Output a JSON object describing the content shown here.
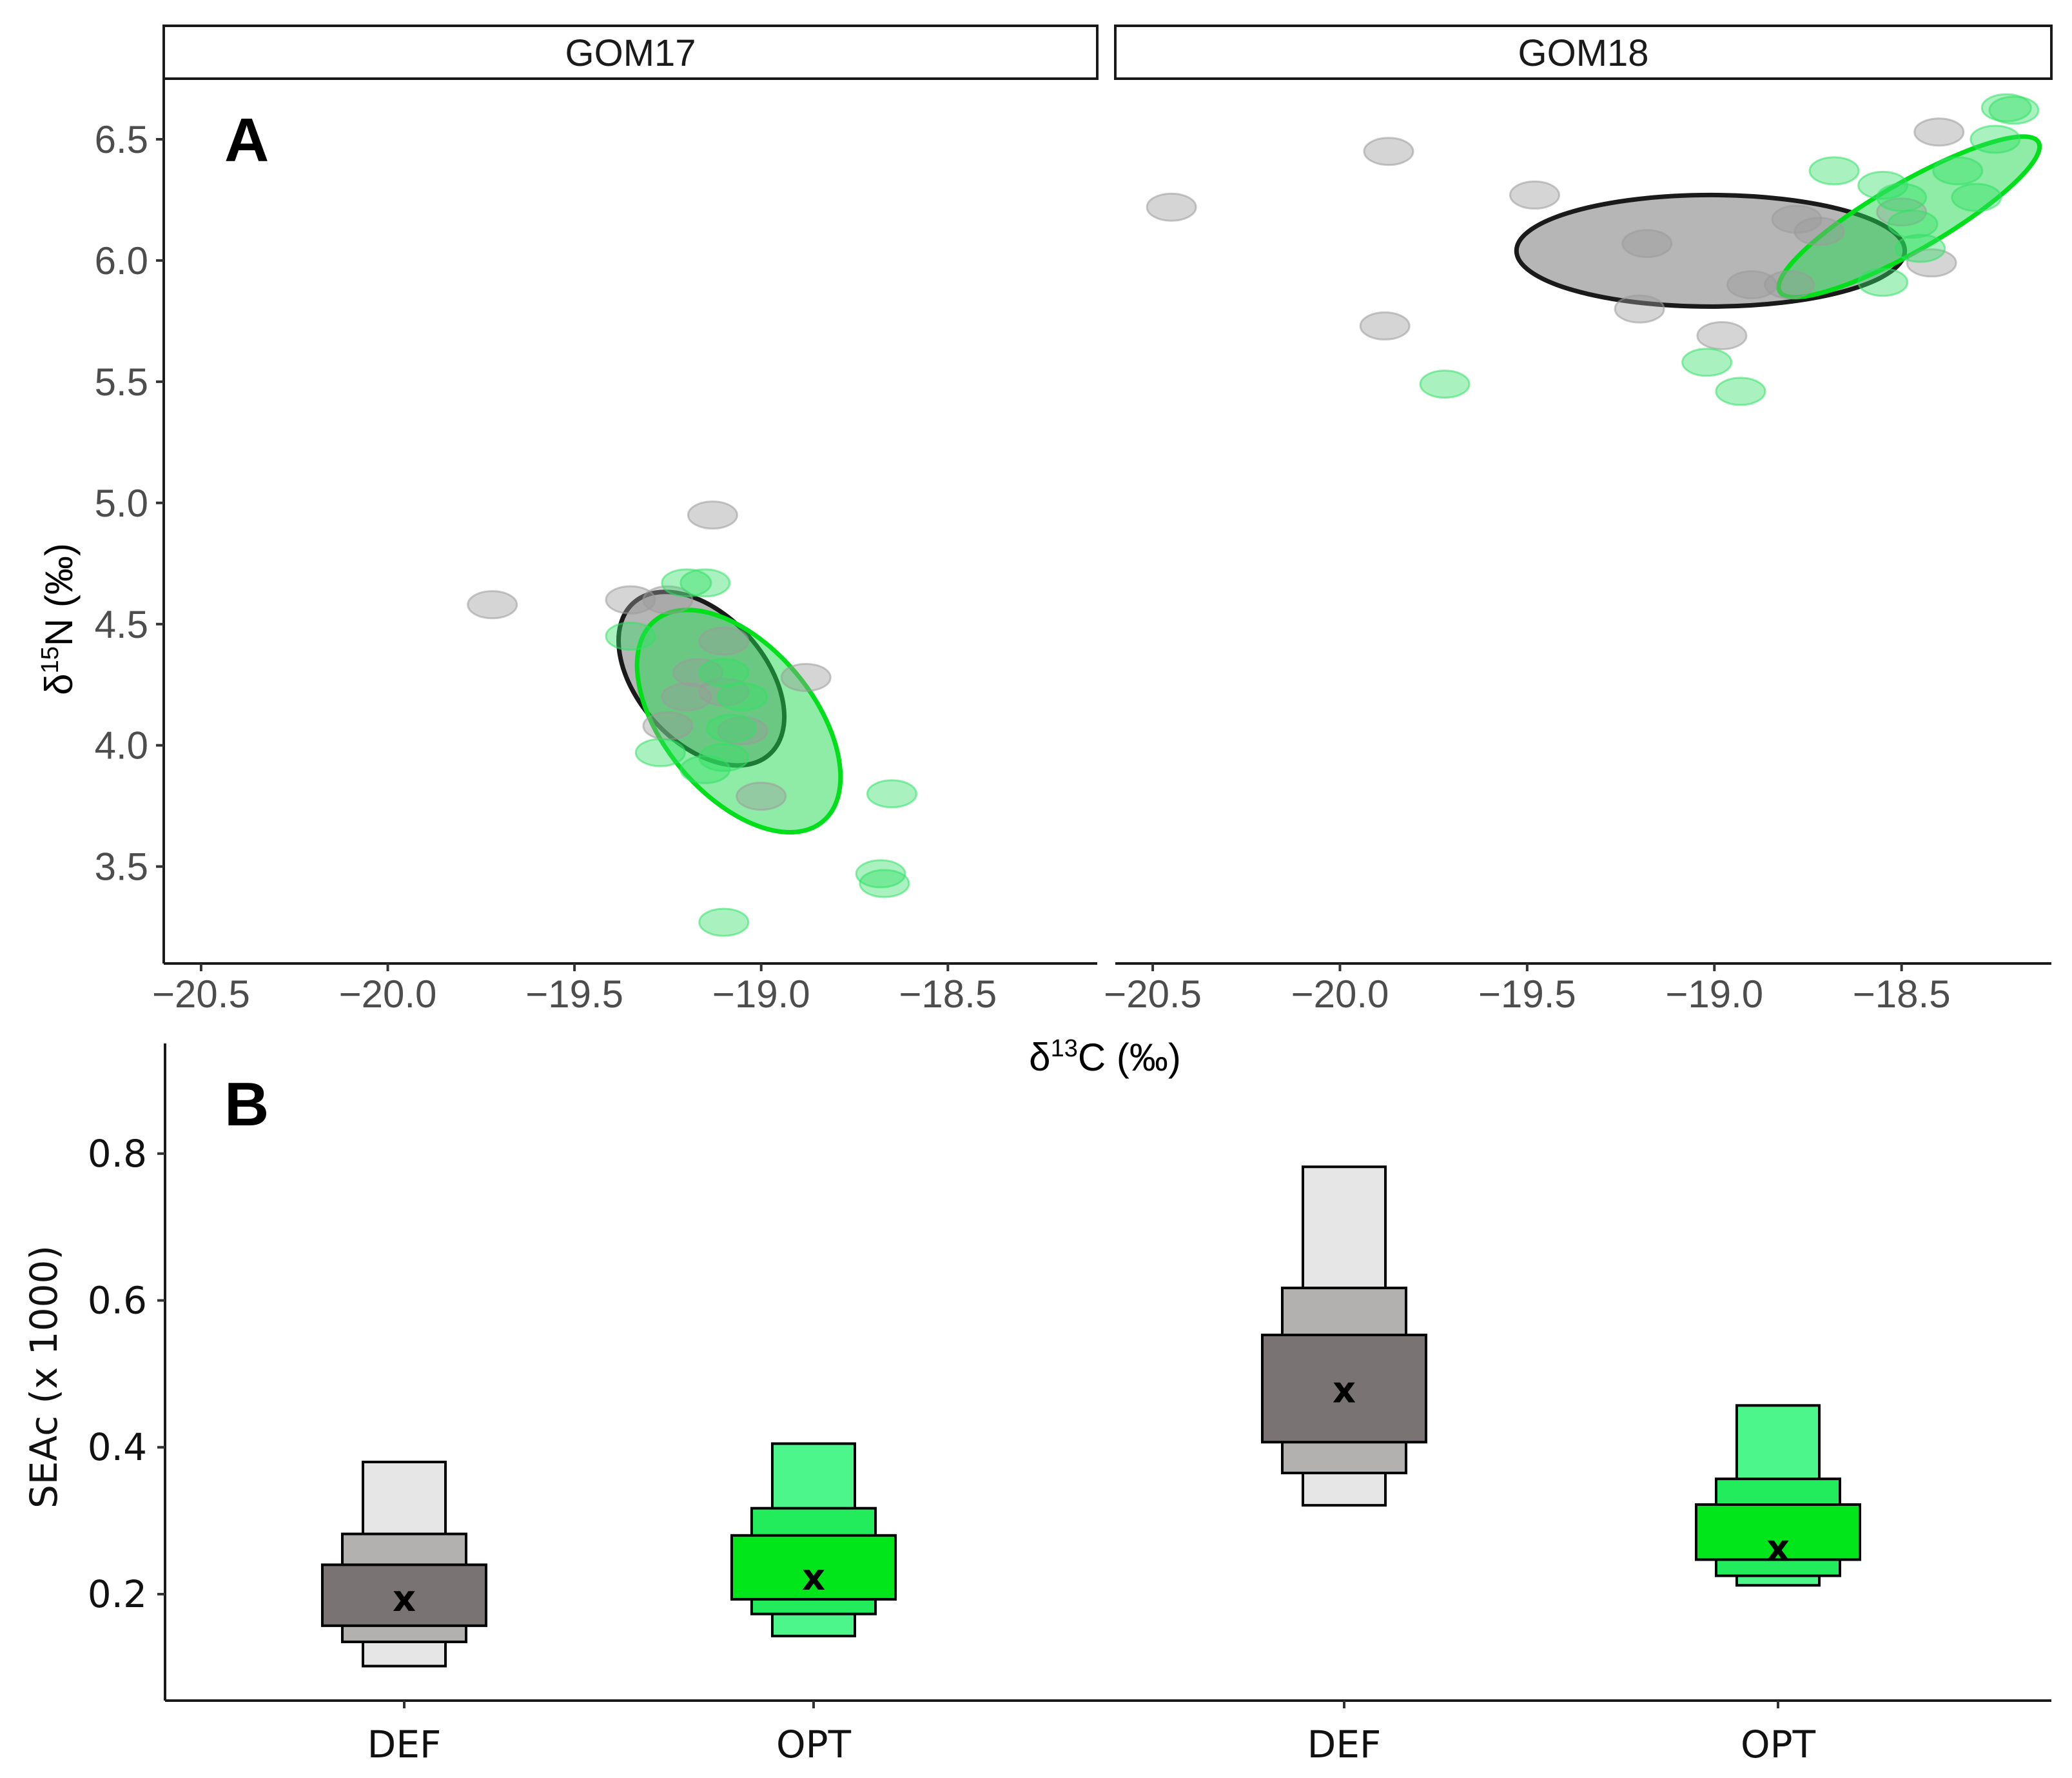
{
  "chart_data": [
    {
      "type": "scatter",
      "panel_label": "A",
      "xlabel": "δ13C (‰)",
      "ylabel": "δ15N (‰)",
      "xlim": [
        -20.6,
        -18.1
      ],
      "ylim": [
        3.1,
        6.75
      ],
      "x_ticks": [
        -20.5,
        -20.0,
        -19.5,
        -19.0,
        -18.5
      ],
      "x_tick_labels": [
        "−20.5",
        "−20.0",
        "−19.5",
        "−19.0",
        "−18.5"
      ],
      "y_ticks": [
        3.5,
        4.0,
        4.5,
        5.0,
        5.5,
        6.0,
        6.5
      ],
      "y_tick_labels": [
        "3.5",
        "4.0",
        "4.5",
        "5.0",
        "5.5",
        "6.0",
        "6.5"
      ],
      "grid": false,
      "colors": {
        "DEF": "#9a9a9a",
        "OPT": "#33e066",
        "DEF_ellipse": "#1a1a1a",
        "OPT_ellipse": "#00e01a"
      },
      "facets": [
        {
          "name": "GOM17",
          "series": [
            {
              "group": "DEF",
              "points": [
                [
                  -19.72,
                  4.58
                ],
                [
                  -19.35,
                  4.6
                ],
                [
                  -19.25,
                  4.6
                ],
                [
                  -19.13,
                  4.95
                ],
                [
                  -19.1,
                  4.43
                ],
                [
                  -18.88,
                  4.28
                ],
                [
                  -19.25,
                  4.08
                ],
                [
                  -19.1,
                  4.22
                ],
                [
                  -19.17,
                  4.3
                ],
                [
                  -19.05,
                  4.06
                ],
                [
                  -19.0,
                  3.79
                ],
                [
                  -19.2,
                  4.2
                ]
              ]
            },
            {
              "group": "OPT",
              "points": [
                [
                  -19.2,
                  4.67
                ],
                [
                  -19.15,
                  4.67
                ],
                [
                  -19.35,
                  4.45
                ],
                [
                  -19.27,
                  3.97
                ],
                [
                  -19.15,
                  3.9
                ],
                [
                  -19.1,
                  4.3
                ],
                [
                  -19.05,
                  4.2
                ],
                [
                  -19.08,
                  4.07
                ],
                [
                  -19.1,
                  3.95
                ],
                [
                  -18.65,
                  3.8
                ],
                [
                  -18.68,
                  3.47
                ],
                [
                  -18.67,
                  3.43
                ],
                [
                  -19.1,
                  3.27
                ]
              ]
            }
          ],
          "ellipses": [
            {
              "group": "DEF",
              "cx": -19.16,
              "cy": 4.275,
              "rx": 0.17,
              "ry": 0.42,
              "angle": -42
            },
            {
              "group": "OPT",
              "cx": -19.06,
              "cy": 4.1,
              "rx": 0.2,
              "ry": 0.54,
              "angle": -40
            }
          ]
        },
        {
          "name": "GOM18",
          "series": [
            {
              "group": "DEF",
              "points": [
                [
                  -20.45,
                  6.22
                ],
                [
                  -19.87,
                  6.45
                ],
                [
                  -19.48,
                  6.27
                ],
                [
                  -19.88,
                  5.73
                ],
                [
                  -19.18,
                  6.07
                ],
                [
                  -19.2,
                  5.8
                ],
                [
                  -18.98,
                  5.69
                ],
                [
                  -18.9,
                  5.9
                ],
                [
                  -18.8,
                  5.9
                ],
                [
                  -18.78,
                  6.17
                ],
                [
                  -18.72,
                  6.12
                ],
                [
                  -18.4,
                  6.53
                ],
                [
                  -18.5,
                  6.2
                ],
                [
                  -18.42,
                  5.99
                ]
              ]
            },
            {
              "group": "OPT",
              "points": [
                [
                  -19.72,
                  5.49
                ],
                [
                  -19.02,
                  5.58
                ],
                [
                  -18.93,
                  5.46
                ],
                [
                  -18.68,
                  6.37
                ],
                [
                  -18.55,
                  6.31
                ],
                [
                  -18.5,
                  6.26
                ],
                [
                  -18.47,
                  6.15
                ],
                [
                  -18.45,
                  6.05
                ],
                [
                  -18.55,
                  5.91
                ],
                [
                  -18.35,
                  6.37
                ],
                [
                  -18.3,
                  6.26
                ],
                [
                  -18.25,
                  6.5
                ],
                [
                  -18.2,
                  6.62
                ],
                [
                  -18.22,
                  6.63
                ]
              ]
            }
          ],
          "ellipses": [
            {
              "group": "DEF",
              "cx": -19.01,
              "cy": 6.04,
              "rx": 0.52,
              "ry": 0.23,
              "angle": 0
            },
            {
              "group": "OPT",
              "cx": -18.48,
              "cy": 6.18,
              "rx": 0.4,
              "ry": 0.14,
              "angle": -30
            }
          ]
        }
      ]
    },
    {
      "type": "bar",
      "panel_label": "B",
      "ylabel": "SEAc (x 1000)",
      "ylim": [
        0.055,
        0.95
      ],
      "y_ticks": [
        0.2,
        0.4,
        0.6,
        0.8
      ],
      "y_tick_labels": [
        "0.2",
        "0.4",
        "0.6",
        "0.8"
      ],
      "mean_marker": "x",
      "categories": [
        "DEF",
        "OPT",
        "DEF",
        "OPT"
      ],
      "series": [
        {
          "category_index": 0,
          "group": "DEF",
          "mean": 0.193,
          "ci50": [
            0.157,
            0.24
          ],
          "ci75": [
            0.135,
            0.282
          ],
          "ci95": [
            0.102,
            0.38
          ]
        },
        {
          "category_index": 1,
          "group": "OPT",
          "mean": 0.222,
          "ci50": [
            0.193,
            0.28
          ],
          "ci75": [
            0.173,
            0.317
          ],
          "ci95": [
            0.143,
            0.405
          ]
        },
        {
          "category_index": 2,
          "group": "DEF",
          "mean": 0.477,
          "ci50": [
            0.407,
            0.553
          ],
          "ci75": [
            0.365,
            0.617
          ],
          "ci95": [
            0.321,
            0.782
          ]
        },
        {
          "category_index": 3,
          "group": "OPT",
          "mean": 0.262,
          "ci50": [
            0.247,
            0.322
          ],
          "ci75": [
            0.225,
            0.357
          ],
          "ci95": [
            0.212,
            0.457
          ]
        }
      ],
      "colors": {
        "DEF": {
          "ci95": "#e6e6e6",
          "ci75": "#b3b0b0",
          "ci50": "#7a7373"
        },
        "OPT": {
          "ci95": "#4cf68b",
          "ci75": "#22ec5c",
          "ci50": "#00e61a"
        }
      }
    }
  ]
}
